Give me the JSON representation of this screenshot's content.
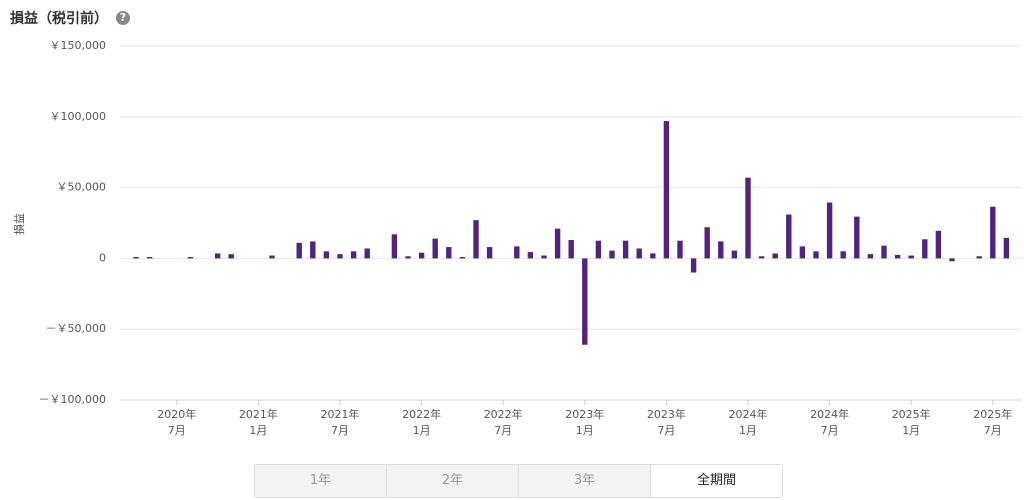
{
  "chart_data": {
    "type": "bar",
    "title": "損益（税引前）",
    "ylabel": "損益",
    "categories": [
      null,
      null,
      null,
      [
        "2020年",
        "7月"
      ],
      null,
      null,
      null,
      null,
      null,
      [
        "2021年",
        "1月"
      ],
      null,
      null,
      null,
      null,
      null,
      [
        "2021年",
        "7月"
      ],
      null,
      null,
      null,
      null,
      null,
      [
        "2022年",
        "1月"
      ],
      null,
      null,
      null,
      null,
      null,
      [
        "2022年",
        "7月"
      ],
      null,
      null,
      null,
      null,
      null,
      [
        "2023年",
        "1月"
      ],
      null,
      null,
      null,
      null,
      null,
      [
        "2023年",
        "7月"
      ],
      null,
      null,
      null,
      null,
      null,
      [
        "2024年",
        "1月"
      ],
      null,
      null,
      null,
      null,
      null,
      [
        "2024年",
        "7月"
      ],
      null,
      null,
      null,
      null,
      null,
      [
        "2025年",
        "1月"
      ],
      null,
      null,
      null,
      null,
      null,
      [
        "2025年",
        "7月"
      ],
      null
    ],
    "values": [
      1000,
      1000,
      0,
      0,
      1000,
      0,
      3500,
      3000,
      0,
      0,
      2000,
      0,
      11000,
      12000,
      5000,
      3000,
      5000,
      7000,
      0,
      17000,
      1500,
      4000,
      14000,
      8000,
      1000,
      27000,
      8000,
      0,
      8500,
      4500,
      2000,
      21000,
      13000,
      -61000,
      12500,
      5500,
      12500,
      7000,
      3500,
      97000,
      12500,
      -10000,
      22000,
      12000,
      5500,
      57000,
      1500,
      3500,
      31000,
      8500,
      5000,
      39500,
      5000,
      29500,
      3000,
      9000,
      2500,
      2000,
      13500,
      19500,
      -2000,
      0,
      1500,
      36500,
      14500
    ],
    "color": "#52247f",
    "ylim": [
      -100000,
      150000
    ],
    "yticks": [
      {
        "value": -100000,
        "label": "－￥100,000"
      },
      {
        "value": -50000,
        "label": "－￥50,000"
      },
      0,
      {
        "value": 50000,
        "label": "￥50,000"
      },
      {
        "value": 100000,
        "label": "￥100,000"
      },
      {
        "value": 150000,
        "label": "￥150,000"
      }
    ],
    "grid": true
  },
  "tabs": [
    "1年",
    "2年",
    "3年",
    "全期間"
  ],
  "selected_tab": 3
}
